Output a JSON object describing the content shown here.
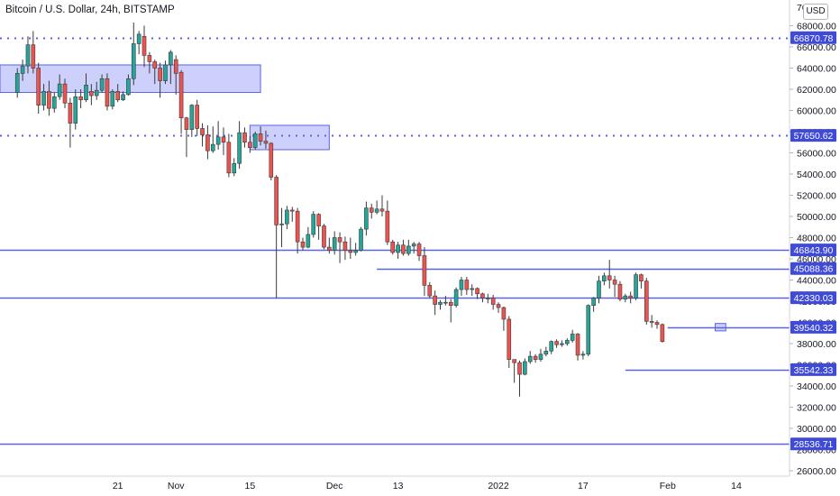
{
  "header": {
    "title": "Bitcoin / U.S. Dollar, 24h, BITSTAMP",
    "currency": "USD"
  },
  "chart_data": {
    "type": "candlestick",
    "y_ticks": [
      26000,
      28000,
      30000,
      32000,
      34000,
      36000,
      38000,
      40000,
      42000,
      44000,
      46000,
      48000,
      50000,
      52000,
      54000,
      56000,
      58000,
      60000,
      62000,
      64000,
      66000,
      68000
    ],
    "y_tick_top": "70",
    "x_ticks": [
      {
        "day": 21,
        "label": "21"
      },
      {
        "day": 32,
        "label": "Nov"
      },
      {
        "day": 46,
        "label": "15"
      },
      {
        "day": 62,
        "label": "Dec"
      },
      {
        "day": 74,
        "label": "13"
      },
      {
        "day": 93,
        "label": "2022"
      },
      {
        "day": 109,
        "label": "17"
      },
      {
        "day": 125,
        "label": "Feb"
      },
      {
        "day": 138,
        "label": "14"
      }
    ],
    "levels": [
      {
        "value": 66870.78,
        "label": "66870.78",
        "style": "dotted",
        "from_day": 0
      },
      {
        "value": 57650.62,
        "label": "57650.62",
        "style": "dotted",
        "from_day": 0
      },
      {
        "value": 46843.9,
        "label": "46843.90",
        "style": "solid",
        "from_day": 0
      },
      {
        "value": 45088.36,
        "label": "45088.36",
        "style": "solid",
        "from_day": 70
      },
      {
        "value": 42330.03,
        "label": "42330.03",
        "style": "solid",
        "from_day": 0
      },
      {
        "value": 39540.32,
        "label": "39540.32",
        "style": "solid",
        "from_day": 125
      },
      {
        "value": 35542.33,
        "label": "35542.33",
        "style": "solid",
        "from_day": 117
      },
      {
        "value": 28536.71,
        "label": "28536.71",
        "style": "solid",
        "from_day": 0
      }
    ],
    "zones": [
      {
        "from_day": 0,
        "to_day": 48,
        "low": 61700,
        "high": 64300
      },
      {
        "from_day": 46,
        "to_day": 61,
        "low": 56300,
        "high": 58600
      },
      {
        "from_day": 134,
        "to_day": 136,
        "low": 39200,
        "high": 39900
      }
    ],
    "candles": [
      [
        2,
        61700,
        63500,
        61200,
        64000
      ],
      [
        3,
        63500,
        64200,
        62800,
        64800
      ],
      [
        4,
        64200,
        66200,
        63500,
        67000
      ],
      [
        5,
        66200,
        64000,
        63500,
        67500
      ],
      [
        6,
        64000,
        60500,
        59700,
        64500
      ],
      [
        7,
        60500,
        61800,
        60000,
        62500
      ],
      [
        8,
        61800,
        60200,
        59500,
        62800
      ],
      [
        9,
        60200,
        61300,
        59800,
        61700
      ],
      [
        10,
        61300,
        62500,
        61000,
        63400
      ],
      [
        11,
        62500,
        60700,
        60200,
        63000
      ],
      [
        12,
        60700,
        58800,
        56500,
        61200
      ],
      [
        13,
        58800,
        61300,
        58200,
        62000
      ],
      [
        14,
        61300,
        61000,
        60200,
        62000
      ],
      [
        15,
        61000,
        62400,
        60800,
        63500
      ],
      [
        16,
        61800,
        61400,
        60500,
        62500
      ],
      [
        17,
        61400,
        61900,
        61000,
        62700
      ],
      [
        18,
        61900,
        63000,
        61700,
        63400
      ],
      [
        19,
        63000,
        60400,
        60000,
        63500
      ],
      [
        20,
        60400,
        61800,
        60100,
        62000
      ],
      [
        21,
        61800,
        61000,
        60800,
        62500
      ],
      [
        22,
        61000,
        61500,
        60900,
        61800
      ],
      [
        23,
        61500,
        63000,
        61400,
        63400
      ],
      [
        24,
        63000,
        66300,
        62400,
        68300
      ],
      [
        25,
        66300,
        67200,
        65300,
        67500
      ],
      [
        26,
        67000,
        65200,
        64100,
        68000
      ],
      [
        27,
        65200,
        64600,
        63500,
        65500
      ],
      [
        28,
        64600,
        64000,
        62500,
        64800
      ],
      [
        29,
        64000,
        62800,
        61200,
        64500
      ],
      [
        30,
        62800,
        64300,
        62500,
        64700
      ],
      [
        31,
        64300,
        65500,
        62500,
        65700
      ],
      [
        32,
        64800,
        63500,
        61500,
        65200
      ],
      [
        33,
        63600,
        59300,
        57800,
        63800
      ],
      [
        34,
        59300,
        58200,
        55600,
        59400
      ],
      [
        35,
        58200,
        60500,
        57500,
        60600
      ],
      [
        36,
        60500,
        58300,
        57600,
        61000
      ],
      [
        37,
        58300,
        57700,
        56600,
        58800
      ],
      [
        38,
        57700,
        56200,
        55400,
        58600
      ],
      [
        39,
        56200,
        56800,
        56000,
        58500
      ],
      [
        40,
        56800,
        57500,
        56300,
        59000
      ],
      [
        41,
        57500,
        57000,
        55800,
        58400
      ],
      [
        42,
        57000,
        54100,
        53700,
        57800
      ],
      [
        43,
        54100,
        55000,
        53800,
        55500
      ],
      [
        44,
        55000,
        57900,
        54500,
        59000
      ],
      [
        45,
        57900,
        57000,
        56500,
        58400
      ],
      [
        46,
        57000,
        56500,
        56000,
        57600
      ],
      [
        47,
        56500,
        57800,
        56300,
        58000
      ],
      [
        48,
        57800,
        57100,
        56700,
        58500
      ],
      [
        49,
        57100,
        56900,
        56400,
        58100
      ],
      [
        50,
        56900,
        53700,
        53400,
        57000
      ],
      [
        51,
        53700,
        49200,
        42300,
        53900
      ],
      [
        52,
        49200,
        49300,
        47100,
        50800
      ],
      [
        53,
        49300,
        50600,
        48800,
        51000
      ],
      [
        54,
        50600,
        50500,
        49500,
        50900
      ],
      [
        55,
        50500,
        47600,
        46500,
        50800
      ],
      [
        56,
        47600,
        47100,
        46800,
        48000
      ],
      [
        57,
        47100,
        48300,
        47000,
        49000
      ],
      [
        58,
        48300,
        50200,
        48000,
        50500
      ],
      [
        59,
        50200,
        49100,
        47800,
        50300
      ],
      [
        60,
        49100,
        47100,
        46900,
        49300
      ],
      [
        61,
        47100,
        46800,
        46500,
        48000
      ],
      [
        62,
        46800,
        48000,
        46400,
        48600
      ],
      [
        63,
        48000,
        47600,
        45600,
        48500
      ],
      [
        64,
        47600,
        46800,
        45900,
        48100
      ],
      [
        65,
        46800,
        46600,
        46000,
        48000
      ],
      [
        66,
        46600,
        46800,
        46300,
        47500
      ],
      [
        67,
        46800,
        48800,
        46700,
        49000
      ],
      [
        68,
        48800,
        50800,
        48200,
        51400
      ],
      [
        69,
        50800,
        50400,
        49800,
        51200
      ],
      [
        70,
        50400,
        50700,
        50200,
        51500
      ],
      [
        71,
        50700,
        50500,
        50000,
        52000
      ],
      [
        72,
        50500,
        47600,
        47300,
        51500
      ],
      [
        73,
        47600,
        46600,
        46400,
        47800
      ],
      [
        74,
        46600,
        47300,
        46000,
        47600
      ],
      [
        75,
        47300,
        46500,
        46300,
        47800
      ],
      [
        76,
        46500,
        47200,
        46300,
        47800
      ],
      [
        77,
        47200,
        47400,
        46500,
        47600
      ],
      [
        78,
        47400,
        46300,
        45800,
        47600
      ],
      [
        79,
        46300,
        43500,
        42500,
        47100
      ],
      [
        80,
        43500,
        42500,
        42300,
        43800
      ],
      [
        81,
        42500,
        41700,
        40700,
        43000
      ],
      [
        82,
        41700,
        41900,
        41200,
        42100
      ],
      [
        83,
        41900,
        41900,
        41600,
        42500
      ],
      [
        84,
        41900,
        41600,
        40000,
        42200
      ],
      [
        85,
        41600,
        43100,
        41400,
        43300
      ],
      [
        86,
        43100,
        44000,
        42500,
        44300
      ],
      [
        87,
        44000,
        43100,
        42600,
        44300
      ],
      [
        88,
        43100,
        43200,
        42500,
        43600
      ],
      [
        89,
        43200,
        42700,
        42200,
        43300
      ],
      [
        90,
        42700,
        42300,
        41900,
        42800
      ],
      [
        91,
        42300,
        42300,
        41800,
        42700
      ],
      [
        92,
        42300,
        41700,
        41200,
        42600
      ],
      [
        93,
        41700,
        41400,
        40900,
        41900
      ],
      [
        94,
        41400,
        40300,
        39200,
        41500
      ],
      [
        95,
        40300,
        36500,
        35700,
        40600
      ],
      [
        96,
        36500,
        36200,
        34300,
        36500
      ],
      [
        97,
        36200,
        35100,
        33000,
        36400
      ],
      [
        98,
        35100,
        36300,
        35000,
        36600
      ],
      [
        99,
        36300,
        36800,
        36100,
        37300
      ],
      [
        100,
        36800,
        36500,
        36200,
        37000
      ],
      [
        101,
        36500,
        37000,
        36300,
        37500
      ],
      [
        102,
        37000,
        37300,
        36800,
        37700
      ],
      [
        103,
        37300,
        38200,
        37000,
        38300
      ],
      [
        104,
        38200,
        37900,
        37600,
        38400
      ],
      [
        105,
        37900,
        38000,
        37700,
        38300
      ],
      [
        106,
        38000,
        38300,
        37800,
        38500
      ],
      [
        107,
        38300,
        38900,
        38100,
        39300
      ],
      [
        108,
        38900,
        36900,
        36400,
        39000
      ],
      [
        109,
        36900,
        37000,
        36500,
        37300
      ],
      [
        110,
        37000,
        41600,
        36800,
        41700
      ],
      [
        111,
        41600,
        42300,
        41000,
        42400
      ],
      [
        112,
        42300,
        43900,
        41800,
        44400
      ],
      [
        113,
        43900,
        44400,
        43500,
        44700
      ],
      [
        114,
        44400,
        44000,
        43200,
        45900
      ],
      [
        115,
        44000,
        43600,
        42400,
        44400
      ],
      [
        116,
        43600,
        42200,
        42000,
        43900
      ],
      [
        117,
        42200,
        42500,
        41900,
        42700
      ],
      [
        118,
        42500,
        42300,
        41800,
        42900
      ],
      [
        119,
        42300,
        44500,
        42100,
        44700
      ],
      [
        120,
        44500,
        43900,
        43200,
        44600
      ],
      [
        121,
        43900,
        40100,
        39800,
        44200
      ],
      [
        122,
        40100,
        40000,
        39500,
        40700
      ],
      [
        123,
        40000,
        39800,
        39400,
        40200
      ],
      [
        124,
        39800,
        38200,
        38100,
        39900
      ]
    ]
  }
}
